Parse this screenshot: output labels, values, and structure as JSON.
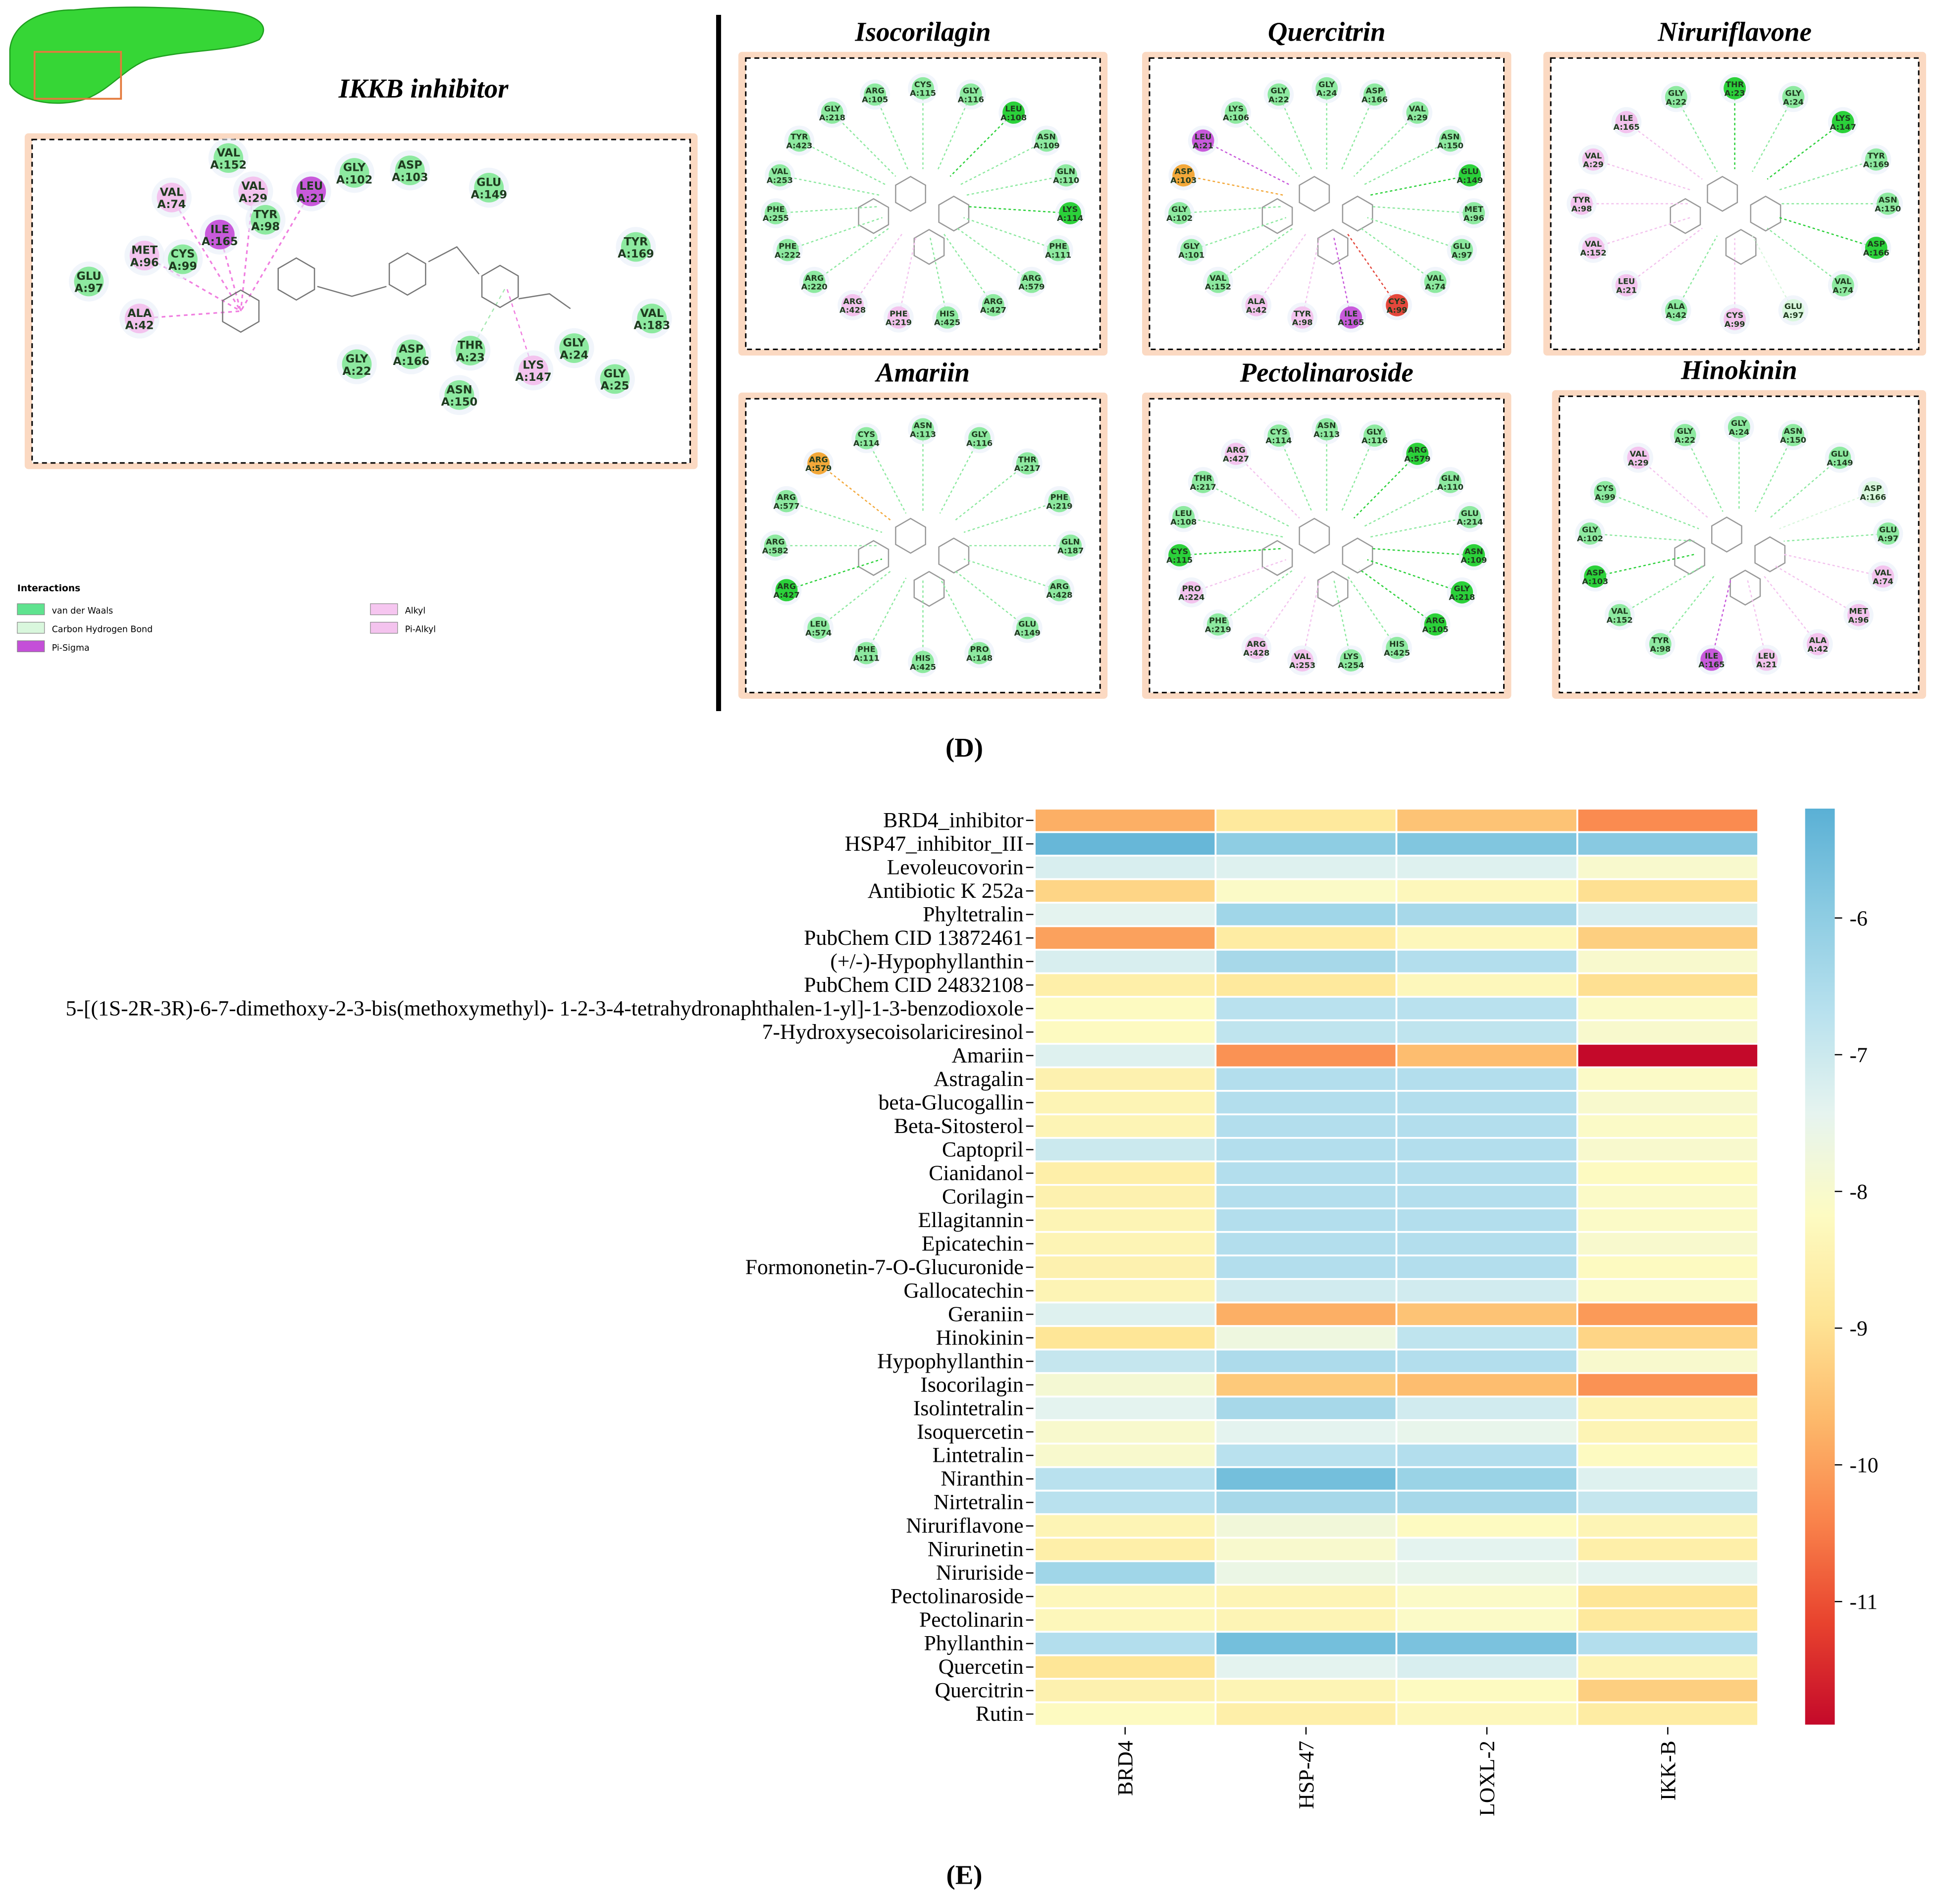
{
  "panel_d": {
    "label": "(D)",
    "main": {
      "title": "IKKB inhibitor",
      "residues": [
        {
          "res": "VAL",
          "num": "A:152",
          "color": "#8de9a0"
        },
        {
          "res": "GLY",
          "num": "A:102",
          "color": "#8de9a0"
        },
        {
          "res": "ASP",
          "num": "A:103",
          "color": "#8de9a0"
        },
        {
          "res": "GLU",
          "num": "A:149",
          "color": "#8de9a0"
        },
        {
          "res": "LEU",
          "num": "A:21",
          "color": "#c85adb"
        },
        {
          "res": "VAL",
          "num": "A:74",
          "color": "#f3c3ee"
        },
        {
          "res": "VAL",
          "num": "A:29",
          "color": "#f3c3ee"
        },
        {
          "res": "ILE",
          "num": "A:165",
          "color": "#c85adb"
        },
        {
          "res": "TYR",
          "num": "A:98",
          "color": "#8de9a0"
        },
        {
          "res": "MET",
          "num": "A:96",
          "color": "#f3c3ee"
        },
        {
          "res": "CYS",
          "num": "A:99",
          "color": "#8de9a0"
        },
        {
          "res": "GLU",
          "num": "A:97",
          "color": "#8de9a0"
        },
        {
          "res": "ALA",
          "num": "A:42",
          "color": "#f3c3ee"
        },
        {
          "res": "TYR",
          "num": "A:169",
          "color": "#8de9a0"
        },
        {
          "res": "VAL",
          "num": "A:183",
          "color": "#8de9a0"
        },
        {
          "res": "GLY",
          "num": "A:22",
          "color": "#8de9a0"
        },
        {
          "res": "ASP",
          "num": "A:166",
          "color": "#8de9a0"
        },
        {
          "res": "THR",
          "num": "A:23",
          "color": "#8de9a0"
        },
        {
          "res": "ASN",
          "num": "A:150",
          "color": "#8de9a0"
        },
        {
          "res": "LYS",
          "num": "A:147",
          "color": "#f3c3ee"
        },
        {
          "res": "GLY",
          "num": "A:24",
          "color": "#8de9a0"
        },
        {
          "res": "GLY",
          "num": "A:25",
          "color": "#8de9a0"
        }
      ],
      "legend_title": "Interactions",
      "legend": [
        {
          "name": "van der Waals",
          "color": "#5fe38f"
        },
        {
          "name": "Carbon Hydrogen Bond",
          "color": "#d9f7dd"
        },
        {
          "name": "Pi-Sigma",
          "color": "#c44fd8"
        },
        {
          "name": "Alkyl",
          "color": "#f6c6f0"
        },
        {
          "name": "Pi-Alkyl",
          "color": "#f4c3ee"
        }
      ]
    },
    "panels": [
      {
        "title": "Isocorilagin",
        "residues": [
          {
            "res": "CYS",
            "num": "A:115",
            "color": "#8de9a0"
          },
          {
            "res": "GLY",
            "num": "A:116",
            "color": "#8de9a0"
          },
          {
            "res": "LEU",
            "num": "A:108",
            "color": "#2bd13a"
          },
          {
            "res": "ASN",
            "num": "A:109",
            "color": "#8de9a0"
          },
          {
            "res": "GLN",
            "num": "A:110",
            "color": "#8de9a0"
          },
          {
            "res": "LYS",
            "num": "A:114",
            "color": "#2bd13a"
          },
          {
            "res": "PHE",
            "num": "A:111",
            "color": "#8de9a0"
          },
          {
            "res": "ARG",
            "num": "A:579",
            "color": "#8de9a0"
          },
          {
            "res": "ARG",
            "num": "A:427",
            "color": "#8de9a0"
          },
          {
            "res": "HIS",
            "num": "A:425",
            "color": "#8de9a0"
          },
          {
            "res": "PHE",
            "num": "A:219",
            "color": "#f3c3ee"
          },
          {
            "res": "ARG",
            "num": "A:428",
            "color": "#f3c3ee"
          },
          {
            "res": "ARG",
            "num": "A:220",
            "color": "#8de9a0"
          },
          {
            "res": "PHE",
            "num": "A:222",
            "color": "#8de9a0"
          },
          {
            "res": "PHE",
            "num": "A:255",
            "color": "#8de9a0"
          },
          {
            "res": "VAL",
            "num": "A:253",
            "color": "#8de9a0"
          },
          {
            "res": "TYR",
            "num": "A:423",
            "color": "#8de9a0"
          },
          {
            "res": "GLY",
            "num": "A:218",
            "color": "#8de9a0"
          },
          {
            "res": "ARG",
            "num": "A:105",
            "color": "#8de9a0"
          }
        ]
      },
      {
        "title": "Quercitrin",
        "residues": [
          {
            "res": "GLY",
            "num": "A:24",
            "color": "#8de9a0"
          },
          {
            "res": "ASP",
            "num": "A:166",
            "color": "#8de9a0"
          },
          {
            "res": "VAL",
            "num": "A:29",
            "color": "#8de9a0"
          },
          {
            "res": "ASN",
            "num": "A:150",
            "color": "#8de9a0"
          },
          {
            "res": "GLU",
            "num": "A:149",
            "color": "#2bd13a"
          },
          {
            "res": "MET",
            "num": "A:96",
            "color": "#8de9a0"
          },
          {
            "res": "GLU",
            "num": "A:97",
            "color": "#8de9a0"
          },
          {
            "res": "VAL",
            "num": "A:74",
            "color": "#8de9a0"
          },
          {
            "res": "CYS",
            "num": "A:99",
            "color": "#e4473c"
          },
          {
            "res": "ILE",
            "num": "A:165",
            "color": "#c85adb"
          },
          {
            "res": "TYR",
            "num": "A:98",
            "color": "#f3c3ee"
          },
          {
            "res": "ALA",
            "num": "A:42",
            "color": "#f3c3ee"
          },
          {
            "res": "VAL",
            "num": "A:152",
            "color": "#8de9a0"
          },
          {
            "res": "GLY",
            "num": "A:101",
            "color": "#8de9a0"
          },
          {
            "res": "GLY",
            "num": "A:102",
            "color": "#8de9a0"
          },
          {
            "res": "ASP",
            "num": "A:103",
            "color": "#f3a83a"
          },
          {
            "res": "LEU",
            "num": "A:21",
            "color": "#c85adb"
          },
          {
            "res": "LYS",
            "num": "A:106",
            "color": "#8de9a0"
          },
          {
            "res": "GLY",
            "num": "A:22",
            "color": "#8de9a0"
          }
        ]
      },
      {
        "title": "Niruriflavone",
        "residues": [
          {
            "res": "THR",
            "num": "A:23",
            "color": "#2bd13a"
          },
          {
            "res": "GLY",
            "num": "A:24",
            "color": "#8de9a0"
          },
          {
            "res": "LYS",
            "num": "A:147",
            "color": "#2bd13a"
          },
          {
            "res": "TYR",
            "num": "A:169",
            "color": "#8de9a0"
          },
          {
            "res": "ASN",
            "num": "A:150",
            "color": "#8de9a0"
          },
          {
            "res": "ASP",
            "num": "A:166",
            "color": "#2bd13a"
          },
          {
            "res": "VAL",
            "num": "A:74",
            "color": "#8de9a0"
          },
          {
            "res": "GLU",
            "num": "A:97",
            "color": "#d9f7dd"
          },
          {
            "res": "CYS",
            "num": "A:99",
            "color": "#f3c3ee"
          },
          {
            "res": "ALA",
            "num": "A:42",
            "color": "#8de9a0"
          },
          {
            "res": "LEU",
            "num": "A:21",
            "color": "#f3c3ee"
          },
          {
            "res": "VAL",
            "num": "A:152",
            "color": "#f3c3ee"
          },
          {
            "res": "TYR",
            "num": "A:98",
            "color": "#f3c3ee"
          },
          {
            "res": "VAL",
            "num": "A:29",
            "color": "#f3c3ee"
          },
          {
            "res": "ILE",
            "num": "A:165",
            "color": "#f3c3ee"
          },
          {
            "res": "GLY",
            "num": "A:22",
            "color": "#8de9a0"
          }
        ]
      },
      {
        "title": "Amariin",
        "residues": [
          {
            "res": "ASN",
            "num": "A:113",
            "color": "#8de9a0"
          },
          {
            "res": "GLY",
            "num": "A:116",
            "color": "#8de9a0"
          },
          {
            "res": "THR",
            "num": "A:217",
            "color": "#8de9a0"
          },
          {
            "res": "PHE",
            "num": "A:219",
            "color": "#8de9a0"
          },
          {
            "res": "GLN",
            "num": "A:187",
            "color": "#8de9a0"
          },
          {
            "res": "ARG",
            "num": "A:428",
            "color": "#8de9a0"
          },
          {
            "res": "GLU",
            "num": "A:149",
            "color": "#8de9a0"
          },
          {
            "res": "PRO",
            "num": "A:148",
            "color": "#8de9a0"
          },
          {
            "res": "HIS",
            "num": "A:425",
            "color": "#8de9a0"
          },
          {
            "res": "PHE",
            "num": "A:111",
            "color": "#8de9a0"
          },
          {
            "res": "LEU",
            "num": "A:574",
            "color": "#8de9a0"
          },
          {
            "res": "ARG",
            "num": "A:427",
            "color": "#2bd13a"
          },
          {
            "res": "ARG",
            "num": "A:582",
            "color": "#8de9a0"
          },
          {
            "res": "ARG",
            "num": "A:577",
            "color": "#8de9a0"
          },
          {
            "res": "ARG",
            "num": "A:579",
            "color": "#f3a83a"
          },
          {
            "res": "CYS",
            "num": "A:114",
            "color": "#8de9a0"
          }
        ]
      },
      {
        "title": "Pectolinaroside",
        "residues": [
          {
            "res": "ASN",
            "num": "A:113",
            "color": "#8de9a0"
          },
          {
            "res": "GLY",
            "num": "A:116",
            "color": "#8de9a0"
          },
          {
            "res": "ARG",
            "num": "A:579",
            "color": "#2bd13a"
          },
          {
            "res": "GLN",
            "num": "A:110",
            "color": "#8de9a0"
          },
          {
            "res": "GLU",
            "num": "A:214",
            "color": "#8de9a0"
          },
          {
            "res": "ASN",
            "num": "A:109",
            "color": "#2bd13a"
          },
          {
            "res": "GLY",
            "num": "A:218",
            "color": "#2bd13a"
          },
          {
            "res": "ARG",
            "num": "A:105",
            "color": "#2bd13a"
          },
          {
            "res": "HIS",
            "num": "A:425",
            "color": "#8de9a0"
          },
          {
            "res": "LYS",
            "num": "A:254",
            "color": "#8de9a0"
          },
          {
            "res": "VAL",
            "num": "A:253",
            "color": "#f3c3ee"
          },
          {
            "res": "ARG",
            "num": "A:428",
            "color": "#f3c3ee"
          },
          {
            "res": "PHE",
            "num": "A:219",
            "color": "#8de9a0"
          },
          {
            "res": "PRO",
            "num": "A:224",
            "color": "#f3c3ee"
          },
          {
            "res": "CYS",
            "num": "A:115",
            "color": "#2bd13a"
          },
          {
            "res": "LEU",
            "num": "A:108",
            "color": "#8de9a0"
          },
          {
            "res": "THR",
            "num": "A:217",
            "color": "#8de9a0"
          },
          {
            "res": "ARG",
            "num": "A:427",
            "color": "#f3c3ee"
          },
          {
            "res": "CYS",
            "num": "A:114",
            "color": "#8de9a0"
          }
        ]
      },
      {
        "title": "Hinokinin",
        "residues": [
          {
            "res": "GLY",
            "num": "A:24",
            "color": "#8de9a0"
          },
          {
            "res": "ASN",
            "num": "A:150",
            "color": "#8de9a0"
          },
          {
            "res": "GLU",
            "num": "A:149",
            "color": "#8de9a0"
          },
          {
            "res": "ASP",
            "num": "A:166",
            "color": "#d9f7dd"
          },
          {
            "res": "GLU",
            "num": "A:97",
            "color": "#8de9a0"
          },
          {
            "res": "VAL",
            "num": "A:74",
            "color": "#f3c3ee"
          },
          {
            "res": "MET",
            "num": "A:96",
            "color": "#f3c3ee"
          },
          {
            "res": "ALA",
            "num": "A:42",
            "color": "#f3c3ee"
          },
          {
            "res": "LEU",
            "num": "A:21",
            "color": "#f3c3ee"
          },
          {
            "res": "ILE",
            "num": "A:165",
            "color": "#c85adb"
          },
          {
            "res": "TYR",
            "num": "A:98",
            "color": "#8de9a0"
          },
          {
            "res": "VAL",
            "num": "A:152",
            "color": "#8de9a0"
          },
          {
            "res": "ASP",
            "num": "A:103",
            "color": "#2bd13a"
          },
          {
            "res": "GLY",
            "num": "A:102",
            "color": "#8de9a0"
          },
          {
            "res": "CYS",
            "num": "A:99",
            "color": "#8de9a0"
          },
          {
            "res": "VAL",
            "num": "A:29",
            "color": "#f3c3ee"
          },
          {
            "res": "GLY",
            "num": "A:22",
            "color": "#8de9a0"
          }
        ]
      }
    ]
  },
  "chart_data": {
    "type": "heatmap",
    "label": "(E)",
    "rows": [
      "BRD4_inhibitor",
      "HSP47_inhibitor_III",
      "Levoleucovorin",
      "Antibiotic K 252a",
      "Phyltetralin",
      "PubChem CID 13872461",
      "(+/-)-Hypophyllanthin",
      "PubChem CID 24832108",
      "5-[(1S-2R-3R)-6-7-dimethoxy-2-3-bis(methoxymethyl)- 1-2-3-4-tetrahydronaphthalen-1-yl]-1-3-benzodioxole",
      "7-Hydroxysecoisolariciresinol",
      "Amariin",
      "Astragalin",
      "beta-Glucogallin",
      "Beta-Sitosterol",
      "Captopril",
      "Cianidanol",
      "Corilagin",
      "Ellagitannin",
      "Epicatechin",
      "Formononetin-7-O-Glucuronide",
      "Gallocatechin",
      "Geraniin",
      "Hinokinin",
      "Hypophyllanthin",
      "Isocorilagin",
      "Isolintetralin",
      "Isoquercetin",
      "Lintetralin",
      "Niranthin",
      "Nirtetralin",
      "Niruriflavone",
      "Nirurinetin",
      "Niruriside",
      "Pectolinaroside",
      "Pectolinarin",
      "Phyllanthin",
      "Quercetin",
      "Quercitrin",
      "Rutin"
    ],
    "columns": [
      "BRD4",
      "HSP-47",
      "LOXL-2",
      "IKK-B"
    ],
    "values": [
      [
        -9.8,
        -8.8,
        -9.5,
        -10.3
      ],
      [
        -5.4,
        -6.0,
        -5.8,
        -5.9
      ],
      [
        -7.2,
        -7.3,
        -7.3,
        -8.0
      ],
      [
        -9.2,
        -8.1,
        -8.3,
        -9.0
      ],
      [
        -7.4,
        -6.3,
        -6.4,
        -7.2
      ],
      [
        -10.0,
        -8.7,
        -8.3,
        -9.3
      ],
      [
        -7.2,
        -6.4,
        -6.6,
        -8.0
      ],
      [
        -8.6,
        -8.8,
        -8.3,
        -9.0
      ],
      [
        -8.2,
        -6.7,
        -6.7,
        -8.1
      ],
      [
        -8.2,
        -6.8,
        -6.8,
        -8.0
      ],
      [
        -7.3,
        -10.2,
        -9.6,
        -11.9
      ],
      [
        -8.5,
        -6.6,
        -6.6,
        -8.1
      ],
      [
        -8.4,
        -6.6,
        -6.6,
        -8.0
      ],
      [
        -8.4,
        -6.6,
        -6.6,
        -8.1
      ],
      [
        -7.0,
        -6.6,
        -6.6,
        -8.0
      ],
      [
        -8.6,
        -6.6,
        -6.6,
        -8.2
      ],
      [
        -8.5,
        -6.6,
        -6.6,
        -8.1
      ],
      [
        -8.4,
        -6.6,
        -6.6,
        -8.1
      ],
      [
        -8.4,
        -6.6,
        -6.6,
        -8.0
      ],
      [
        -8.5,
        -6.6,
        -6.6,
        -8.2
      ],
      [
        -8.4,
        -7.1,
        -7.1,
        -8.1
      ],
      [
        -7.3,
        -9.8,
        -9.5,
        -10.1
      ],
      [
        -8.9,
        -7.7,
        -6.8,
        -9.2
      ],
      [
        -6.9,
        -6.5,
        -6.6,
        -8.0
      ],
      [
        -7.9,
        -9.4,
        -9.6,
        -10.2
      ],
      [
        -7.4,
        -6.4,
        -7.1,
        -8.4
      ],
      [
        -8.0,
        -7.4,
        -7.5,
        -8.4
      ],
      [
        -8.0,
        -6.7,
        -6.6,
        -8.2
      ],
      [
        -6.7,
        -5.6,
        -6.2,
        -7.3
      ],
      [
        -6.7,
        -6.4,
        -6.4,
        -6.9
      ],
      [
        -8.4,
        -7.8,
        -8.2,
        -8.4
      ],
      [
        -8.6,
        -8.0,
        -7.4,
        -8.6
      ],
      [
        -6.3,
        -7.6,
        -7.5,
        -7.4
      ],
      [
        -8.3,
        -8.4,
        -8.1,
        -8.9
      ],
      [
        -8.3,
        -8.4,
        -8.1,
        -8.8
      ],
      [
        -6.6,
        -5.6,
        -5.7,
        -6.6
      ],
      [
        -8.9,
        -7.4,
        -7.2,
        -8.4
      ],
      [
        -8.5,
        -8.4,
        -8.2,
        -9.3
      ],
      [
        -8.2,
        -8.6,
        -8.3,
        -8.7
      ]
    ],
    "clim": [
      -11.9,
      -5.2
    ],
    "cticks": [
      -6,
      -7,
      -8,
      -9,
      -10,
      -11
    ],
    "colormap": [
      "#c4092a",
      "#e8432e",
      "#f9834b",
      "#fdb96b",
      "#fee596",
      "#fdfbc2",
      "#e6f4ef",
      "#b8e1ee",
      "#8bcbe2",
      "#5ab0d5"
    ]
  }
}
